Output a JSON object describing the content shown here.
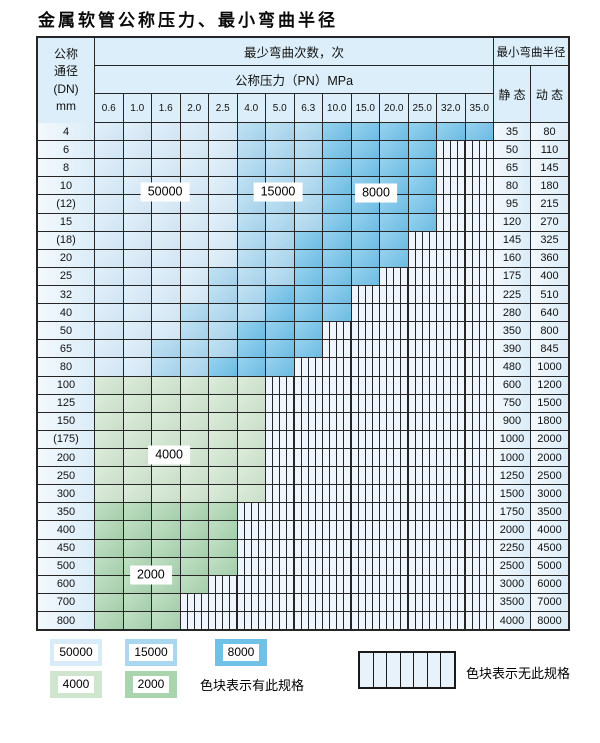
{
  "title": "金属软管公称压力、最小弯曲半径",
  "colors": {
    "blue_light": "#d7ebf8",
    "blue_mid": "#a9d7ef",
    "blue_dark": "#6fc1e8",
    "green_light": "#cfe5cd",
    "green_mid": "#a9d4ae",
    "hatch_bg": "#eef5fc",
    "header_bg": "#dceef9",
    "grid": "#262626"
  },
  "table": {
    "corner_lines": [
      "公称",
      "通径",
      "(DN)",
      "mm"
    ],
    "bend_cycles_header": "最少弯曲次数，次",
    "pressure_header": "公称压力（PN）MPa",
    "radius_header": "最小弯曲半径",
    "static_label": "静 态",
    "dynamic_label": "动 态",
    "pressures": [
      "0.6",
      "1.0",
      "1.6",
      "2.0",
      "2.5",
      "4.0",
      "5.0",
      "6.3",
      "10.0",
      "15.0",
      "20.0",
      "25.0",
      "32.0",
      "35.0"
    ],
    "rows": [
      {
        "dn": "4",
        "static": "35",
        "dynamic": "80",
        "zones": [
          [
            "50000",
            1,
            5
          ],
          [
            "15000",
            6,
            8
          ],
          [
            "8000",
            9,
            14
          ]
        ]
      },
      {
        "dn": "6",
        "static": "50",
        "dynamic": "110",
        "zones": [
          [
            "50000",
            1,
            5
          ],
          [
            "15000",
            6,
            8
          ],
          [
            "8000",
            9,
            12
          ]
        ]
      },
      {
        "dn": "8",
        "static": "65",
        "dynamic": "145",
        "zones": [
          [
            "50000",
            1,
            5
          ],
          [
            "15000",
            6,
            8
          ],
          [
            "8000",
            9,
            12
          ]
        ]
      },
      {
        "dn": "10",
        "static": "80",
        "dynamic": "180",
        "zones": [
          [
            "50000",
            1,
            5
          ],
          [
            "15000",
            6,
            8
          ],
          [
            "8000",
            9,
            12
          ]
        ]
      },
      {
        "dn": "(12)",
        "static": "95",
        "dynamic": "215",
        "zones": [
          [
            "50000",
            1,
            5
          ],
          [
            "15000",
            6,
            8
          ],
          [
            "8000",
            9,
            12
          ]
        ]
      },
      {
        "dn": "15",
        "static": "120",
        "dynamic": "270",
        "zones": [
          [
            "50000",
            1,
            5
          ],
          [
            "15000",
            6,
            8
          ],
          [
            "8000",
            9,
            12
          ]
        ]
      },
      {
        "dn": "(18)",
        "static": "145",
        "dynamic": "325",
        "zones": [
          [
            "50000",
            1,
            5
          ],
          [
            "15000",
            6,
            7
          ],
          [
            "8000",
            8,
            11
          ]
        ]
      },
      {
        "dn": "20",
        "static": "160",
        "dynamic": "360",
        "zones": [
          [
            "50000",
            1,
            5
          ],
          [
            "15000",
            6,
            7
          ],
          [
            "8000",
            8,
            11
          ]
        ]
      },
      {
        "dn": "25",
        "static": "175",
        "dynamic": "400",
        "zones": [
          [
            "50000",
            1,
            4
          ],
          [
            "15000",
            5,
            7
          ],
          [
            "8000",
            8,
            10
          ]
        ]
      },
      {
        "dn": "32",
        "static": "225",
        "dynamic": "510",
        "zones": [
          [
            "50000",
            1,
            4
          ],
          [
            "15000",
            5,
            6
          ],
          [
            "8000",
            7,
            9
          ]
        ]
      },
      {
        "dn": "40",
        "static": "280",
        "dynamic": "640",
        "zones": [
          [
            "50000",
            1,
            3
          ],
          [
            "15000",
            4,
            6
          ],
          [
            "8000",
            7,
            9
          ]
        ]
      },
      {
        "dn": "50",
        "static": "350",
        "dynamic": "800",
        "zones": [
          [
            "50000",
            1,
            3
          ],
          [
            "15000",
            4,
            5
          ],
          [
            "8000",
            6,
            8
          ]
        ]
      },
      {
        "dn": "65",
        "static": "390",
        "dynamic": "845",
        "zones": [
          [
            "50000",
            1,
            2
          ],
          [
            "15000",
            3,
            5
          ],
          [
            "8000",
            6,
            8
          ]
        ]
      },
      {
        "dn": "80",
        "static": "480",
        "dynamic": "1000",
        "zones": [
          [
            "50000",
            1,
            2
          ],
          [
            "15000",
            3,
            4
          ],
          [
            "8000",
            5,
            7
          ]
        ]
      },
      {
        "dn": "100",
        "static": "600",
        "dynamic": "1200",
        "zones": [
          [
            "4000",
            1,
            6
          ]
        ]
      },
      {
        "dn": "125",
        "static": "750",
        "dynamic": "1500",
        "zones": [
          [
            "4000",
            1,
            6
          ]
        ]
      },
      {
        "dn": "150",
        "static": "900",
        "dynamic": "1800",
        "zones": [
          [
            "4000",
            1,
            6
          ]
        ]
      },
      {
        "dn": "(175)",
        "static": "1000",
        "dynamic": "2000",
        "zones": [
          [
            "4000",
            1,
            6
          ]
        ]
      },
      {
        "dn": "200",
        "static": "1000",
        "dynamic": "2000",
        "zones": [
          [
            "4000",
            1,
            6
          ]
        ]
      },
      {
        "dn": "250",
        "static": "1250",
        "dynamic": "2500",
        "zones": [
          [
            "4000",
            1,
            6
          ]
        ]
      },
      {
        "dn": "300",
        "static": "1500",
        "dynamic": "3000",
        "zones": [
          [
            "4000",
            1,
            6
          ]
        ]
      },
      {
        "dn": "350",
        "static": "1750",
        "dynamic": "3500",
        "zones": [
          [
            "2000",
            1,
            5
          ]
        ]
      },
      {
        "dn": "400",
        "static": "2000",
        "dynamic": "4000",
        "zones": [
          [
            "2000",
            1,
            5
          ]
        ]
      },
      {
        "dn": "450",
        "static": "2250",
        "dynamic": "4500",
        "zones": [
          [
            "2000",
            1,
            5
          ]
        ]
      },
      {
        "dn": "500",
        "static": "2500",
        "dynamic": "5000",
        "zones": [
          [
            "2000",
            1,
            5
          ]
        ]
      },
      {
        "dn": "600",
        "static": "3000",
        "dynamic": "6000",
        "zones": [
          [
            "2000",
            1,
            4
          ]
        ]
      },
      {
        "dn": "700",
        "static": "3500",
        "dynamic": "7000",
        "zones": [
          [
            "2000",
            1,
            3
          ]
        ]
      },
      {
        "dn": "800",
        "static": "4000",
        "dynamic": "8000",
        "zones": [
          [
            "2000",
            1,
            3
          ]
        ]
      }
    ]
  },
  "zone_palette": {
    "50000": "blue_light",
    "15000": "blue_mid",
    "8000": "blue_dark",
    "4000": "green_light",
    "2000": "green_mid"
  },
  "overlays": [
    {
      "label": "50000",
      "col": 2.46,
      "row": 3.82
    },
    {
      "label": "15000",
      "col": 6.42,
      "row": 3.82
    },
    {
      "label": "8000",
      "col": 9.86,
      "row": 3.88
    },
    {
      "label": "4000",
      "col": 2.6,
      "row": 18.4
    },
    {
      "label": "2000",
      "col": 1.96,
      "row": 25.0
    }
  ],
  "legend": {
    "swatch_rows": [
      [
        "50000",
        "15000",
        "8000"
      ],
      [
        "4000",
        "2000"
      ]
    ],
    "has_spec_text": "色块表示有此规格",
    "no_spec_text": "色块表示无此规格"
  }
}
